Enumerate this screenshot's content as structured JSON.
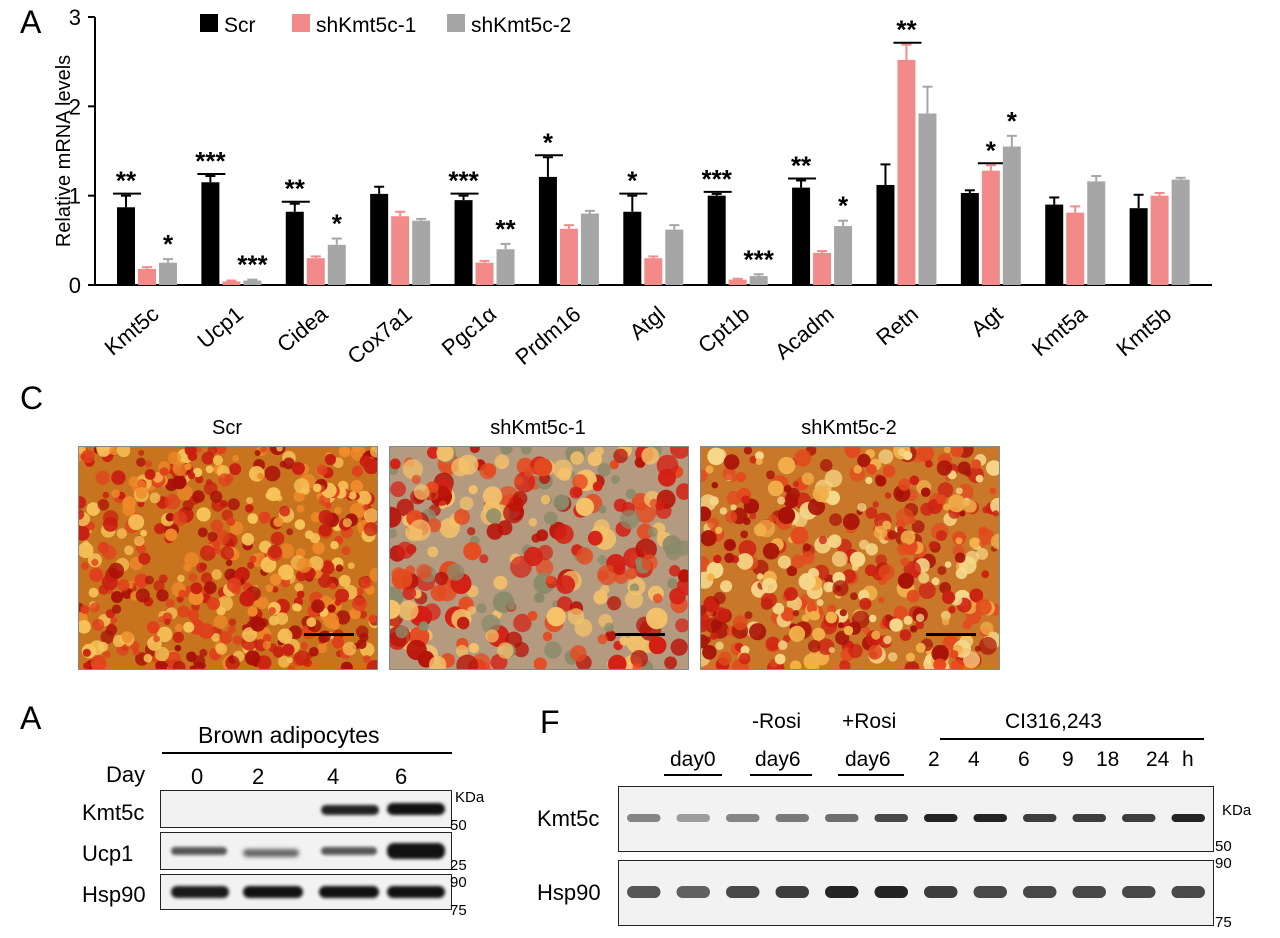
{
  "panels": {
    "top_chart": "A",
    "micrographs": "C",
    "western_left": "A",
    "western_right": "F"
  },
  "chart_data": {
    "type": "bar",
    "ylabel": "Relative mRNA levels",
    "ylim": [
      0,
      3
    ],
    "yticks": [
      "0",
      "1",
      "2",
      "3"
    ],
    "categories": [
      "Kmt5c",
      "Ucp1",
      "Cidea",
      "Cox7a1",
      "Pgc1α",
      "Prdm16",
      "Atgl",
      "Cpt1b",
      "Acadm",
      "Retn",
      "Agt",
      "Kmt5a",
      "Kmt5b"
    ],
    "series": [
      {
        "name": "Scr",
        "color": "#000000",
        "values": [
          0.87,
          1.15,
          0.82,
          1.02,
          0.95,
          1.21,
          0.82,
          1.0,
          1.09,
          1.12,
          1.03,
          0.9,
          0.86
        ],
        "errors": [
          0.13,
          0.07,
          0.09,
          0.08,
          0.05,
          0.22,
          0.18,
          0.02,
          0.08,
          0.23,
          0.03,
          0.08,
          0.15
        ],
        "sig": [
          "**",
          "***",
          "**",
          "",
          "***",
          "*",
          "*",
          "***",
          "**",
          "",
          "",
          "",
          ""
        ]
      },
      {
        "name": "shKmt5c-1",
        "color": "#f28a8a",
        "values": [
          0.18,
          0.04,
          0.3,
          0.77,
          0.25,
          0.63,
          0.3,
          0.06,
          0.36,
          2.52,
          1.28,
          0.81,
          1.0
        ],
        "errors": [
          0.02,
          0.01,
          0.02,
          0.05,
          0.02,
          0.04,
          0.02,
          0.01,
          0.02,
          0.17,
          0.06,
          0.07,
          0.03
        ],
        "sig": [
          "",
          "",
          "",
          "",
          "",
          "",
          "",
          "",
          "",
          "**",
          "*",
          "",
          ""
        ]
      },
      {
        "name": "shKmt5c-2",
        "color": "#a6a6a6",
        "values": [
          0.25,
          0.05,
          0.45,
          0.72,
          0.4,
          0.8,
          0.62,
          0.1,
          0.66,
          1.92,
          1.55,
          1.16,
          1.18
        ],
        "errors": [
          0.04,
          0.01,
          0.07,
          0.02,
          0.06,
          0.03,
          0.05,
          0.02,
          0.06,
          0.3,
          0.12,
          0.06,
          0.02
        ],
        "sig": [
          "*",
          "***",
          "*",
          "",
          "**",
          "",
          "",
          "***",
          "*",
          "",
          "*",
          "",
          ""
        ]
      }
    ]
  },
  "micrographs": {
    "titles": [
      "Scr",
      "shKmt5c-1",
      "shKmt5c-2"
    ]
  },
  "western_left": {
    "group_label": "Brown adipocytes",
    "day_label": "Day",
    "days": [
      "0",
      "2",
      "4",
      "6"
    ],
    "rows": [
      "Kmt5c",
      "Ucp1",
      "Hsp90"
    ],
    "kda": "KDa",
    "markers": [
      "50",
      "25",
      "90",
      "75"
    ]
  },
  "western_right": {
    "minus_rosi": "-Rosi",
    "plus_rosi": "+Rosi",
    "cl_label": "CI316,243",
    "lane_groups": [
      "day0",
      "day6",
      "day6"
    ],
    "timepoints": [
      "2",
      "4",
      "6",
      "9",
      "18",
      "24"
    ],
    "h_unit": "h",
    "rows": [
      "Kmt5c",
      "Hsp90"
    ],
    "kda": "KDa",
    "markers": [
      "50",
      "90",
      "75"
    ]
  }
}
